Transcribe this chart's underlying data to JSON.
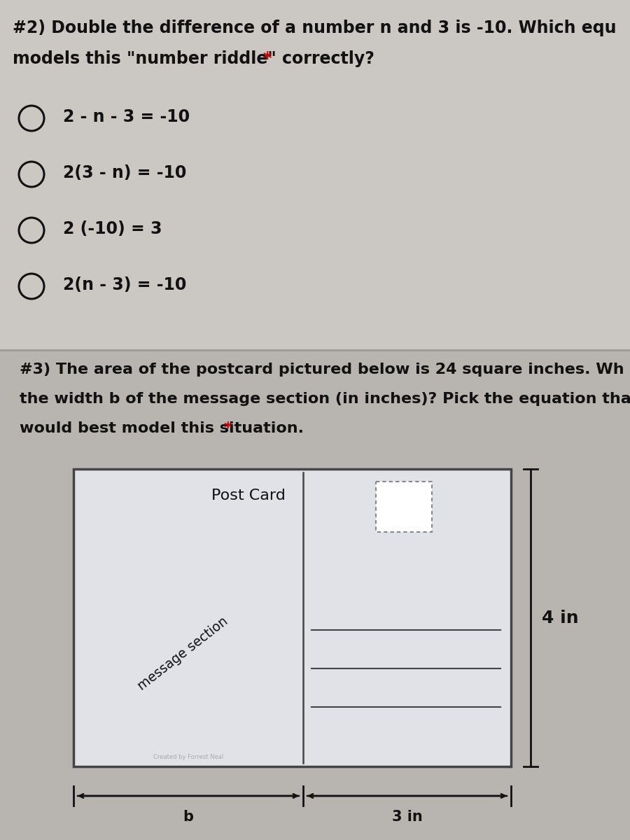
{
  "q1_bg_color": "#cac6c2",
  "q2_bg_color": "#bfbbb7",
  "overall_bg": "#c5c1bd",
  "text_color": "#111111",
  "star_color": "#cc0000",
  "q2_line1": "#2) Double the difference of a number n and 3 is -10. Which equ",
  "q2_line2_main": "models this \"number riddle\" correctly? ",
  "q2_line2_star": "*",
  "q2_options": [
    "2 - n - 3 = -10",
    "2(3 - n) = -10",
    "2 (-10) = 3",
    "2(n - 3) = -10"
  ],
  "q3_line1": "#3) The area of the postcard pictured below is 24 square inches. Wh",
  "q3_line2": "the width b of the message section (in inches)? Pick the equation tha",
  "q3_line3_main": "would best model this situation. ",
  "q3_line3_star": "*",
  "card_bg": "#e0e2e8",
  "card_border": "#444444",
  "postcard_title": "Post Card",
  "message_label": "message section",
  "dim_4in": "4 in",
  "dim_b": "b",
  "dim_3in": "3 in"
}
